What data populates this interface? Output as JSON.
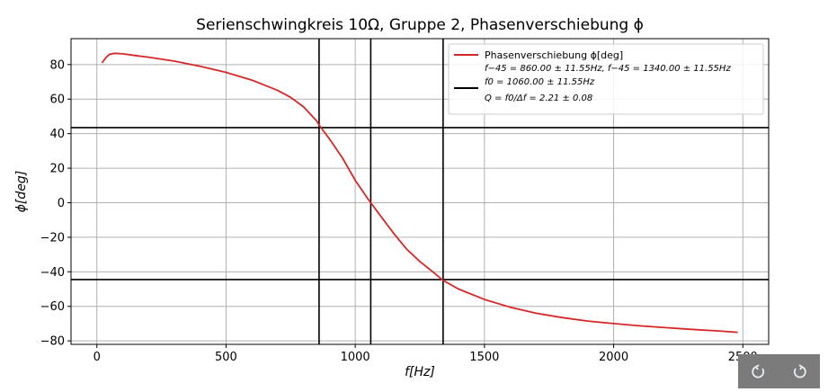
{
  "chart_data": {
    "type": "line",
    "title": "Serienschwingkreis 10Ω, Gruppe 2, Phasenverschiebung ϕ",
    "xlabel": "f[Hz]",
    "ylabel": "ϕ[deg]",
    "xlim": [
      -100,
      2600
    ],
    "ylim": [
      -82,
      95
    ],
    "xticks": [
      0,
      500,
      1000,
      1500,
      2000,
      2500
    ],
    "yticks": [
      -80,
      -60,
      -40,
      -20,
      0,
      20,
      40,
      60,
      80
    ],
    "grid": true,
    "legend_position": "top-right",
    "series": [
      {
        "name": "Phasenverschiebung ϕ[deg]",
        "color": "#d62728",
        "x": [
          20,
          35,
          50,
          70,
          100,
          150,
          200,
          300,
          400,
          500,
          600,
          700,
          750,
          800,
          850,
          860,
          900,
          950,
          1000,
          1050,
          1060,
          1100,
          1150,
          1200,
          1250,
          1300,
          1340,
          1400,
          1500,
          1600,
          1700,
          1800,
          1900,
          2000,
          2100,
          2200,
          2300,
          2400,
          2480
        ],
        "y": [
          81,
          84,
          86,
          86.5,
          86.2,
          85.2,
          84.3,
          82,
          79,
          75.5,
          71,
          65,
          61,
          55.5,
          47.5,
          45,
          37,
          26,
          13,
          2,
          0,
          -8,
          -18,
          -27,
          -34,
          -40,
          -45,
          -50,
          -56,
          -60.5,
          -64,
          -66.5,
          -68.5,
          -70,
          -71.3,
          -72.3,
          -73.3,
          -74.2,
          -75
        ]
      }
    ],
    "vertical_lines": [
      860,
      1060,
      1340
    ],
    "horizontal_lines": [
      43.5,
      -44.5
    ],
    "legend": {
      "entries": [
        {
          "label": "Phasenverschiebung ϕ[deg]",
          "color": "#d62728"
        },
        {
          "label": "",
          "color": "#000000"
        }
      ],
      "line1": "f−45 = 860.00 ± 11.55Hz, f−45 = 1340.00 ± 11.55Hz",
      "line2": "f0 = 1060.00 ± 11.55Hz",
      "line3": "Q = f0/Δf = 2.21 ± 0.08"
    }
  },
  "toolbar": {
    "undo_icon": "undo-icon",
    "redo_icon": "redo-icon"
  }
}
